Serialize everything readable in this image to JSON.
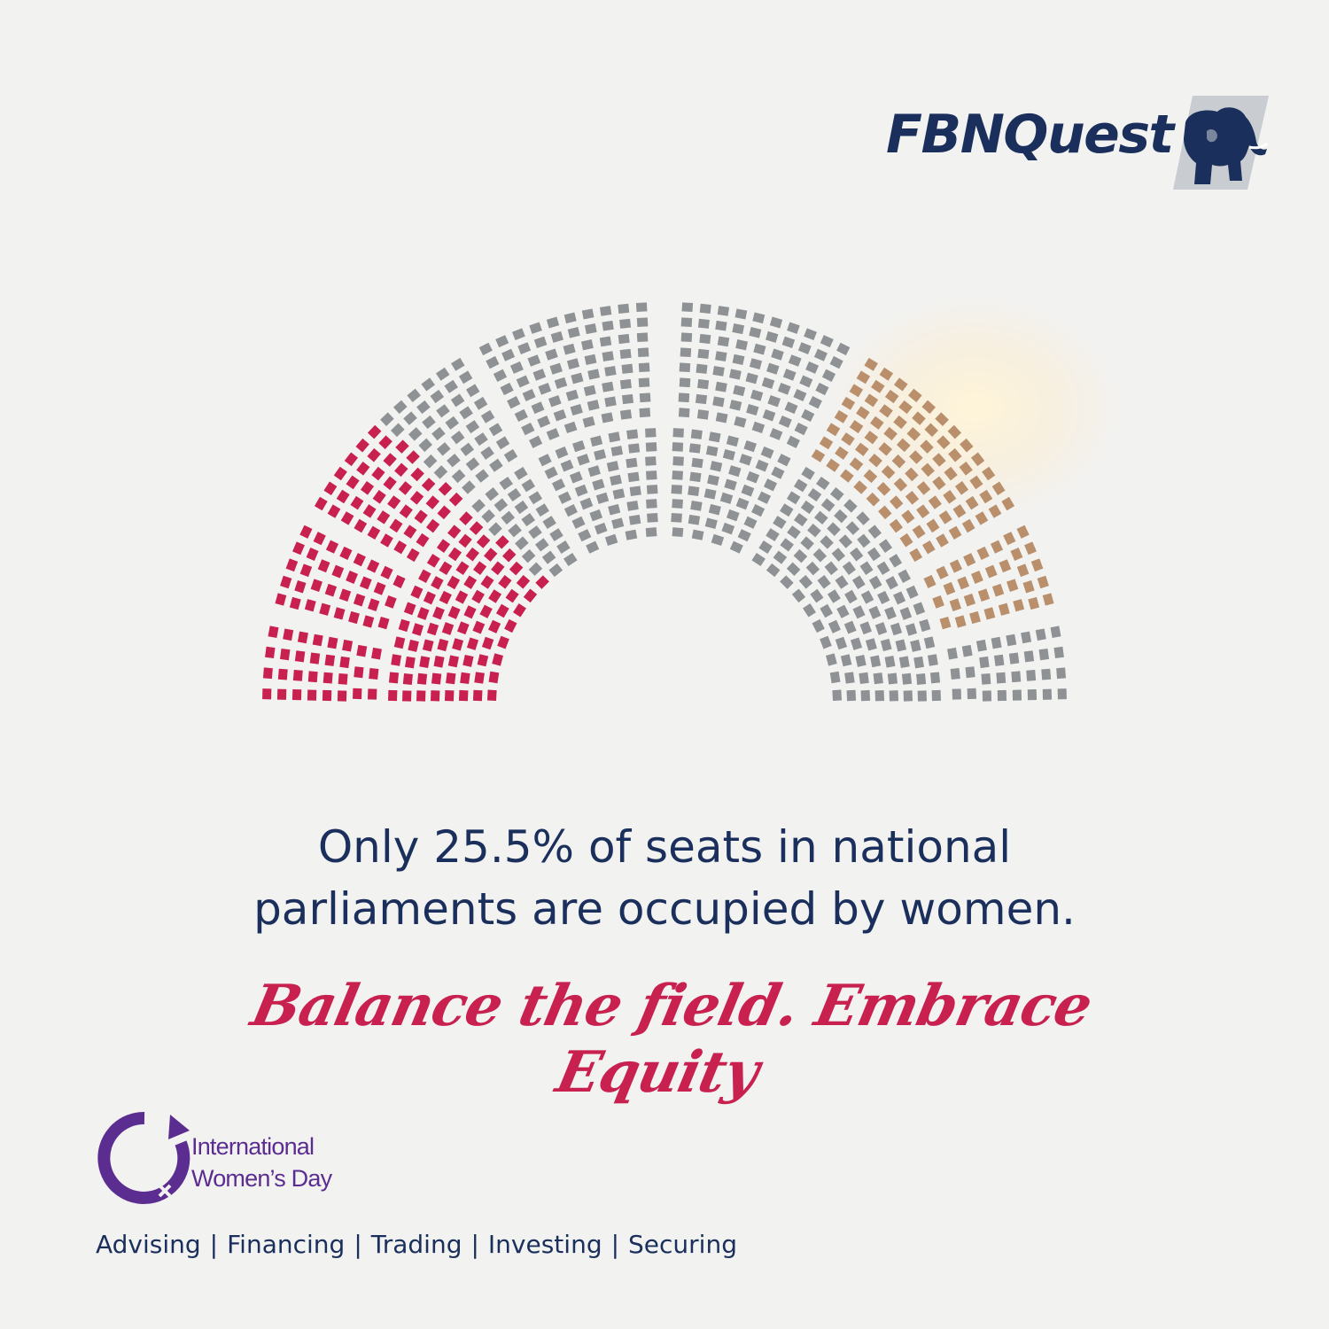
{
  "brand": {
    "logo_text": "FBNQuest",
    "emblem_icon": "elephant-icon",
    "navy": "#1b2f5c"
  },
  "seat_chart": {
    "type": "parliament",
    "share_women_percent": 25.5,
    "colors": {
      "women": "#c8204f",
      "other": "#8f9294",
      "warm": "#b98f6c"
    }
  },
  "headline": {
    "line1": "Only 25.5% of seats in national",
    "line2": "parliaments are occupied by women."
  },
  "slogan": "Balance the field. Embrace Equity",
  "campaign": {
    "logo_icon": "venus-cycle-icon",
    "line1": "International",
    "line2": "Women’s Day",
    "color": "#5c2d91"
  },
  "services": [
    "Advising",
    "Financing",
    "Trading",
    "Investing",
    "Securing"
  ],
  "services_separator": "|"
}
